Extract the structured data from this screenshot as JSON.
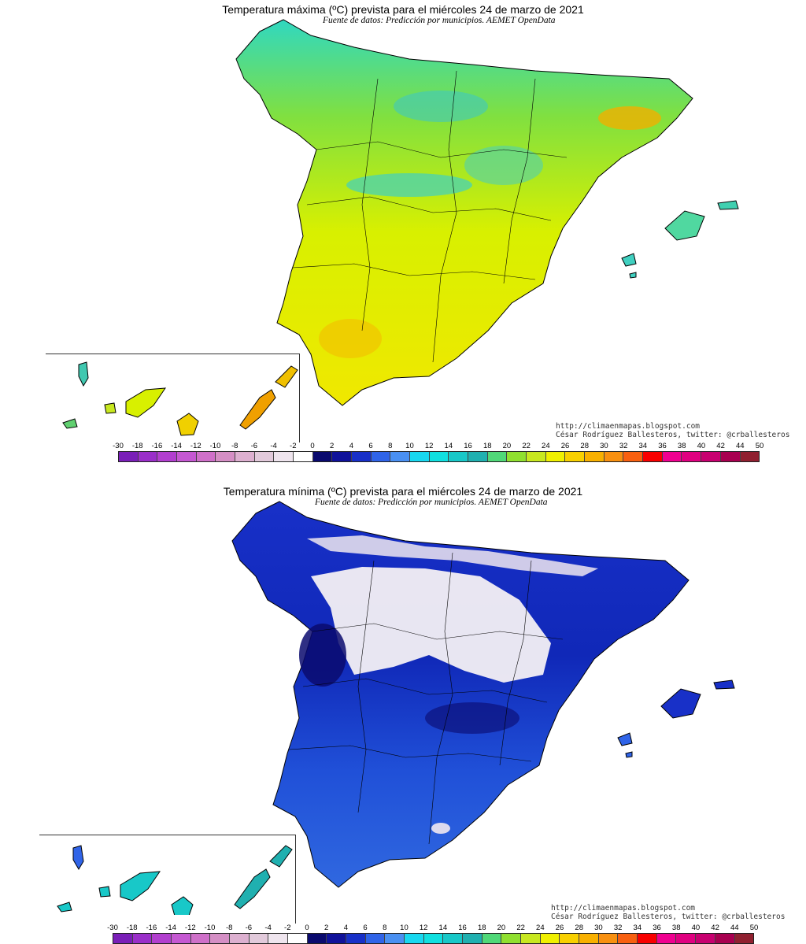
{
  "maps": {
    "max": {
      "title": "Temperatura máxima (ºC) prevista para el miércoles 24 de marzo de 2021",
      "source": "Fuente de datos: Predicción por municipios. AEMET OpenData",
      "credit_url": "http://climaenmapas.blogspot.com",
      "credit_author": "César Rodríguez Ballesteros, twitter: @crballesteros"
    },
    "min": {
      "title": "Temperatura mínima (ºC) prevista para el miércoles 24 de marzo de 2021",
      "source": "Fuente de datos: Predicción por municipios. AEMET OpenData",
      "credit_url": "http://climaenmapas.blogspot.com",
      "credit_author": "César Rodríguez Ballesteros, twitter: @crballesteros"
    }
  },
  "scale": {
    "labels": [
      "-30",
      "-18",
      "-16",
      "-14",
      "-12",
      "-10",
      "-8",
      "-6",
      "-4",
      "-2",
      "0",
      "2",
      "4",
      "6",
      "8",
      "10",
      "12",
      "14",
      "16",
      "18",
      "20",
      "22",
      "24",
      "26",
      "28",
      "30",
      "32",
      "34",
      "36",
      "38",
      "40",
      "42",
      "44",
      "50"
    ],
    "colors": [
      "#7a1fb8",
      "#9a2fc9",
      "#b23fcf",
      "#c558d2",
      "#cf70c9",
      "#d58fc5",
      "#ddb0d0",
      "#e2cadb",
      "#efe5ee",
      "#ffffff",
      "#0a0a6e",
      "#10129a",
      "#1830c8",
      "#3064e8",
      "#4a90f2",
      "#18d8f0",
      "#10e0e0",
      "#18c8c8",
      "#20b0b0",
      "#50d878",
      "#90e030",
      "#c8e820",
      "#f0f000",
      "#f8d000",
      "#f8b000",
      "#f89010",
      "#f86010",
      "#f80000",
      "#f00090",
      "#e00080",
      "#c80070",
      "#a80050",
      "#902030"
    ]
  }
}
